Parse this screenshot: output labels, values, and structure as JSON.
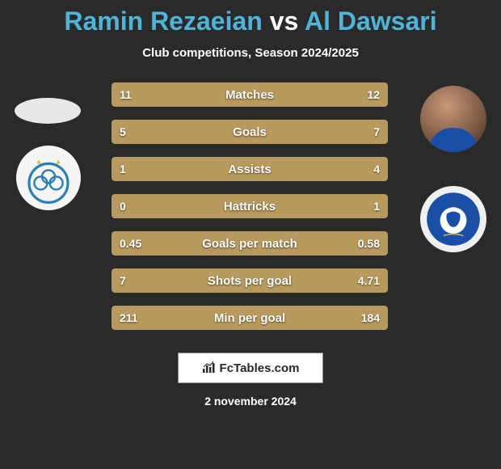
{
  "title": {
    "p1": "Ramin Rezaeian",
    "vs": "vs",
    "p2": "Al Dawsari"
  },
  "subtitle": "Club competitions, Season 2024/2025",
  "colors": {
    "bar_fill": "#b89a5e",
    "background": "#2a2a2a",
    "accent": "#4fb4d8",
    "text": "#ffffff"
  },
  "bars": [
    {
      "label": "Matches",
      "left": "11",
      "right": "12",
      "left_pct": 47.8,
      "right_pct": 52.2
    },
    {
      "label": "Goals",
      "left": "5",
      "right": "7",
      "left_pct": 41.7,
      "right_pct": 58.3
    },
    {
      "label": "Assists",
      "left": "1",
      "right": "4",
      "left_pct": 20.0,
      "right_pct": 80.0
    },
    {
      "label": "Hattricks",
      "left": "0",
      "right": "1",
      "left_pct": 0.0,
      "right_pct": 100.0
    },
    {
      "label": "Goals per match",
      "left": "0.45",
      "right": "0.58",
      "left_pct": 43.7,
      "right_pct": 56.3
    },
    {
      "label": "Shots per goal",
      "left": "7",
      "right": "4.71",
      "left_pct": 59.8,
      "right_pct": 40.2
    },
    {
      "label": "Min per goal",
      "left": "211",
      "right": "184",
      "left_pct": 53.4,
      "right_pct": 46.6
    }
  ],
  "bar_style": {
    "height": 30,
    "gap": 16,
    "radius": 4,
    "font_size": 15,
    "val_font_size": 14
  },
  "footer": {
    "brand": "FcTables.com",
    "icon": "📊"
  },
  "date": "2 november 2024"
}
